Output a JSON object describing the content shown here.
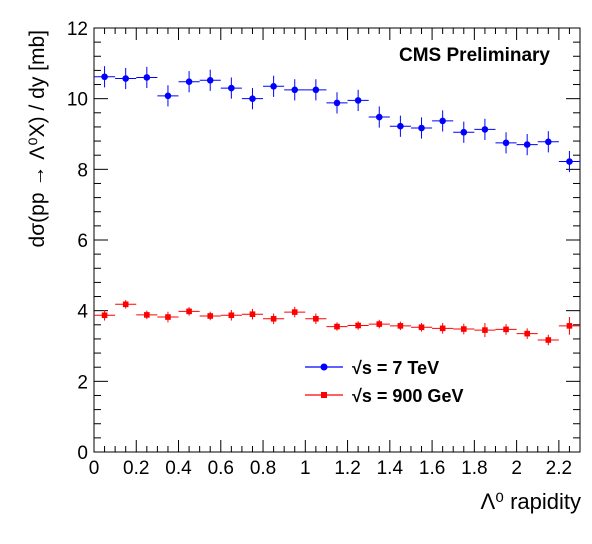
{
  "chart_data": {
    "type": "scatter",
    "title": "",
    "annotation": "CMS Preliminary",
    "xlabel": "Λ⁰ rapidity",
    "ylabel": "dσ(pp → Λ⁰X) / dy  [mb]",
    "xlim": [
      0,
      2.3
    ],
    "ylim": [
      0,
      12
    ],
    "x_ticks": [
      0,
      0.2,
      0.4,
      0.6,
      0.8,
      1,
      1.2,
      1.4,
      1.6,
      1.8,
      2,
      2.2
    ],
    "x_tick_labels": [
      "0",
      "0.2",
      "0.4",
      "0.6",
      "0.8",
      "1",
      "1.2",
      "1.4",
      "1.6",
      "1.8",
      "2",
      "2.2"
    ],
    "y_ticks": [
      0,
      2,
      4,
      6,
      8,
      10,
      12
    ],
    "y_tick_labels": [
      "0",
      "2",
      "4",
      "6",
      "8",
      "10",
      "12"
    ],
    "legend_position": "lower-right",
    "grid": false,
    "x": [
      0.05,
      0.15,
      0.25,
      0.35,
      0.45,
      0.55,
      0.65,
      0.75,
      0.85,
      0.95,
      1.05,
      1.15,
      1.25,
      1.35,
      1.45,
      1.55,
      1.65,
      1.75,
      1.85,
      1.95,
      2.05,
      2.15,
      2.25
    ],
    "x_halfwidth": 0.05,
    "series": [
      {
        "name": "√s = 7 TeV",
        "color": "#0000ff",
        "marker": "circle",
        "values": [
          10.62,
          10.57,
          10.6,
          10.08,
          10.48,
          10.52,
          10.3,
          10.0,
          10.35,
          10.25,
          10.25,
          9.88,
          9.95,
          9.48,
          9.22,
          9.17,
          9.37,
          9.05,
          9.13,
          8.75,
          8.7,
          8.78,
          8.22
        ],
        "errors": [
          0.3,
          0.3,
          0.3,
          0.3,
          0.3,
          0.3,
          0.3,
          0.3,
          0.3,
          0.3,
          0.3,
          0.3,
          0.3,
          0.3,
          0.3,
          0.3,
          0.3,
          0.3,
          0.3,
          0.3,
          0.3,
          0.3,
          0.3
        ]
      },
      {
        "name": "√s = 900 GeV",
        "color": "#ff0000",
        "marker": "square",
        "values": [
          3.87,
          4.18,
          3.88,
          3.82,
          3.98,
          3.85,
          3.87,
          3.9,
          3.77,
          3.96,
          3.77,
          3.55,
          3.58,
          3.62,
          3.57,
          3.53,
          3.5,
          3.48,
          3.45,
          3.47,
          3.35,
          3.17,
          3.57
        ],
        "errors": [
          0.15,
          0.12,
          0.12,
          0.15,
          0.12,
          0.12,
          0.15,
          0.15,
          0.15,
          0.15,
          0.15,
          0.12,
          0.12,
          0.12,
          0.12,
          0.12,
          0.15,
          0.15,
          0.2,
          0.15,
          0.15,
          0.15,
          0.25
        ]
      }
    ]
  }
}
